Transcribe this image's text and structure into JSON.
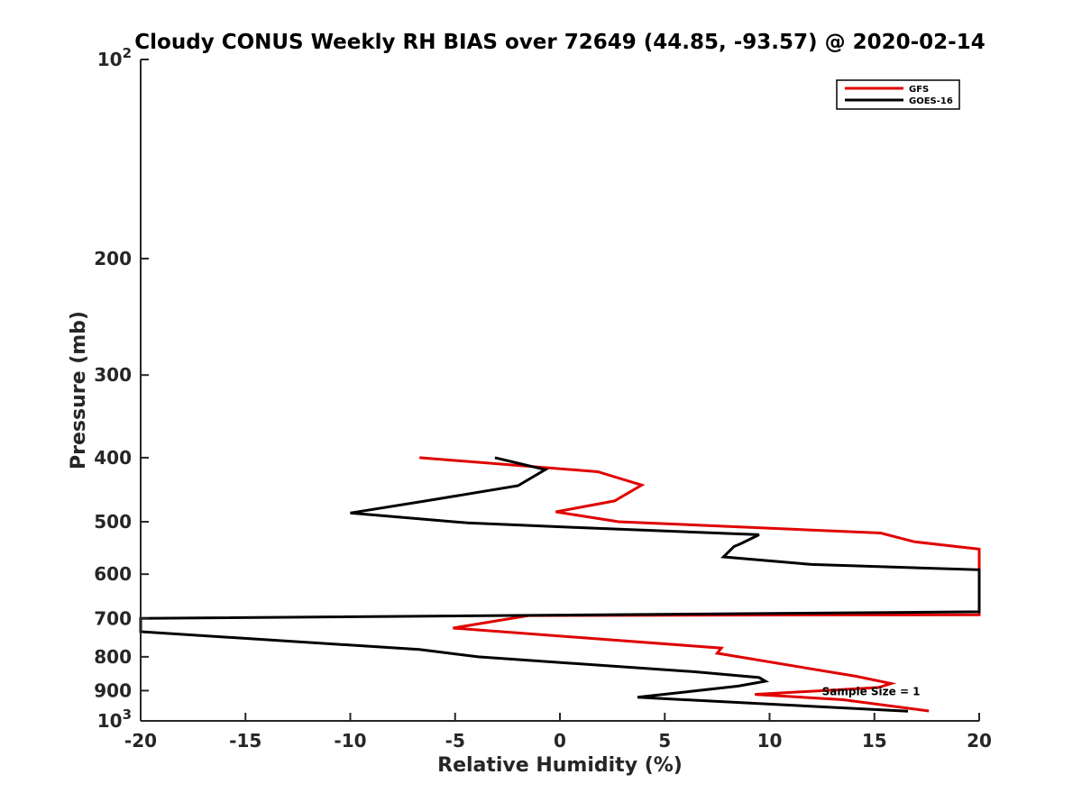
{
  "chart_data": {
    "type": "line",
    "title": "Cloudy CONUS Weekly RH BIAS over 72649 (44.85, -93.57) @ 2020-02-14",
    "xlabel": "Relative Humidity (%)",
    "ylabel": "Pressure (mb)",
    "xlim": [
      -20,
      20
    ],
    "ylim": [
      100,
      1000
    ],
    "y_scale": "log",
    "y_reversed": true,
    "grid": false,
    "legend_position": "top-right",
    "x_ticks": [
      -20,
      -15,
      -10,
      -5,
      0,
      5,
      10,
      15,
      20
    ],
    "x_tick_labels": [
      "-20",
      "-15",
      "-10",
      "-5",
      "0",
      "5",
      "10",
      "15",
      "20"
    ],
    "y_ticks": [
      100,
      200,
      300,
      400,
      500,
      600,
      700,
      800,
      900,
      1000
    ],
    "y_tick_labels": [
      {
        "base": "10",
        "exp": "2"
      },
      {
        "base": "200"
      },
      {
        "base": "300"
      },
      {
        "base": "400"
      },
      {
        "base": "500"
      },
      {
        "base": "600"
      },
      {
        "base": "700"
      },
      {
        "base": "800"
      },
      {
        "base": "900"
      },
      {
        "base": "10",
        "exp": "3"
      }
    ],
    "annotation": {
      "text": "Sample Size = 1",
      "x": 12.5,
      "y": 900
    },
    "series": [
      {
        "name": "GFS",
        "color": "#e00000",
        "points": [
          [
            -6.7,
            400
          ],
          [
            1.8,
            420
          ],
          [
            3.9,
            440
          ],
          [
            2.6,
            465
          ],
          [
            -0.2,
            483
          ],
          [
            2.8,
            500
          ],
          [
            15.3,
            520
          ],
          [
            16.9,
            536
          ],
          [
            20,
            550
          ],
          [
            20,
            691
          ],
          [
            -1.5,
            693
          ],
          [
            -5.1,
            724
          ],
          [
            7.7,
            776
          ],
          [
            7.5,
            790
          ],
          [
            14.1,
            856
          ],
          [
            15.8,
            878
          ],
          [
            15.2,
            890
          ],
          [
            14.5,
            893
          ],
          [
            9.3,
            912
          ],
          [
            13.5,
            929
          ],
          [
            17.6,
            966
          ]
        ]
      },
      {
        "name": "GOES-16",
        "color": "#000000",
        "points": [
          [
            -3.1,
            400
          ],
          [
            -0.7,
            417
          ],
          [
            -2.0,
            441
          ],
          [
            -6.4,
            465
          ],
          [
            -10.0,
            485
          ],
          [
            -4.4,
            502
          ],
          [
            0.8,
            510
          ],
          [
            9.5,
            523
          ],
          [
            8.6,
            540
          ],
          [
            8.3,
            545
          ],
          [
            7.8,
            565
          ],
          [
            12.0,
            580
          ],
          [
            20,
            591
          ],
          [
            20,
            684
          ],
          [
            -20,
            700
          ],
          [
            -20,
            733
          ],
          [
            -6.7,
            780
          ],
          [
            -3.9,
            800
          ],
          [
            6.5,
            843
          ],
          [
            9.5,
            860
          ],
          [
            9.8,
            871
          ],
          [
            8.5,
            886
          ],
          [
            3.7,
            921
          ],
          [
            16.6,
            967
          ]
        ]
      }
    ]
  }
}
